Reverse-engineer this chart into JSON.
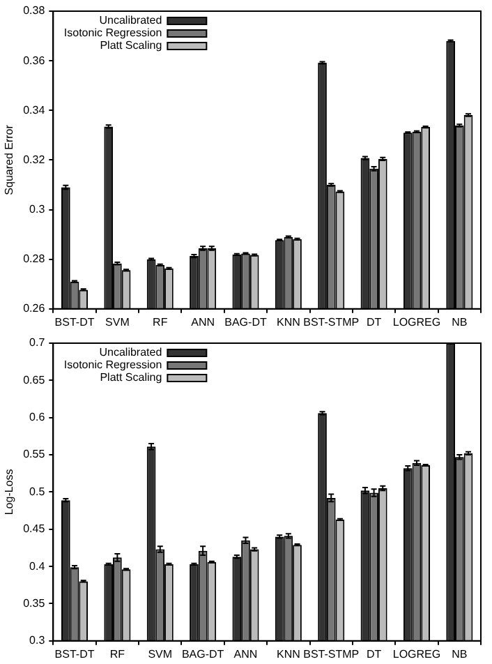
{
  "chart_data": [
    {
      "type": "bar",
      "ylabel": "Squared Error",
      "categories": [
        "BST-DT",
        "SVM",
        "RF",
        "ANN",
        "BAG-DT",
        "KNN",
        "BST-STMP",
        "DT",
        "LOGREG",
        "NB"
      ],
      "ylim": [
        0.26,
        0.38
      ],
      "yticks": [
        0.26,
        0.28,
        0.3,
        0.32,
        0.34,
        0.36,
        0.38
      ],
      "grid": false,
      "legend": "top left",
      "series": [
        {
          "name": "Uncalibrated",
          "color": "#333333",
          "values": [
            0.309,
            0.3335,
            0.28,
            0.2813,
            0.2819,
            0.2877,
            0.3592,
            0.3208,
            0.331,
            0.368
          ],
          "errors": [
            0.0008,
            0.0006,
            0.0003,
            0.0006,
            0.0003,
            0.0003,
            0.0004,
            0.0006,
            0.0003,
            0.0003
          ]
        },
        {
          "name": "Isotonic Regression",
          "color": "#777777",
          "values": [
            0.271,
            0.2783,
            0.2777,
            0.2844,
            0.2823,
            0.289,
            0.31,
            0.3165,
            0.3314,
            0.3339
          ],
          "errors": [
            0.0003,
            0.0005,
            0.0003,
            0.0008,
            0.0003,
            0.0003,
            0.0005,
            0.0008,
            0.0003,
            0.0005
          ]
        },
        {
          "name": "Platt Scaling",
          "color": "#bbbbbb",
          "values": [
            0.2677,
            0.2756,
            0.2763,
            0.2844,
            0.2817,
            0.2881,
            0.3073,
            0.3204,
            0.3333,
            0.3381
          ],
          "errors": [
            0.0003,
            0.0003,
            0.0003,
            0.0008,
            0.0003,
            0.0003,
            0.0003,
            0.0006,
            0.0003,
            0.0005
          ]
        }
      ]
    },
    {
      "type": "bar",
      "ylabel": "Log-Loss",
      "categories": [
        "BST-DT",
        "RF",
        "SVM",
        "BAG-DT",
        "ANN",
        "KNN",
        "BST-STMP",
        "DT",
        "LOGREG",
        "NB"
      ],
      "ylim": [
        0.3,
        0.7
      ],
      "yticks": [
        0.3,
        0.35,
        0.4,
        0.45,
        0.5,
        0.55,
        0.6,
        0.65,
        0.7
      ],
      "grid": false,
      "legend": "top left",
      "series": [
        {
          "name": "Uncalibrated",
          "color": "#333333",
          "values": [
            0.489,
            0.403,
            0.561,
            0.403,
            0.413,
            0.44,
            0.606,
            0.502,
            0.532,
            0.7
          ],
          "errors": [
            0.002,
            0.001,
            0.004,
            0.001,
            0.002,
            0.002,
            0.002,
            0.004,
            0.003,
            null
          ]
        },
        {
          "name": "Isotonic Regression",
          "color": "#777777",
          "values": [
            0.399,
            0.412,
            0.423,
            0.421,
            0.435,
            0.441,
            0.492,
            0.499,
            0.539,
            0.547
          ],
          "errors": [
            0.002,
            0.005,
            0.004,
            0.006,
            0.004,
            0.003,
            0.005,
            0.005,
            0.003,
            0.003
          ]
        },
        {
          "name": "Platt Scaling",
          "color": "#bbbbbb",
          "values": [
            0.38,
            0.396,
            0.403,
            0.406,
            0.423,
            0.429,
            0.463,
            0.505,
            0.536,
            0.552
          ],
          "errors": [
            0.001,
            0.001,
            0.001,
            0.001,
            0.002,
            0.001,
            0.001,
            0.003,
            0.001,
            0.002
          ]
        }
      ]
    }
  ]
}
